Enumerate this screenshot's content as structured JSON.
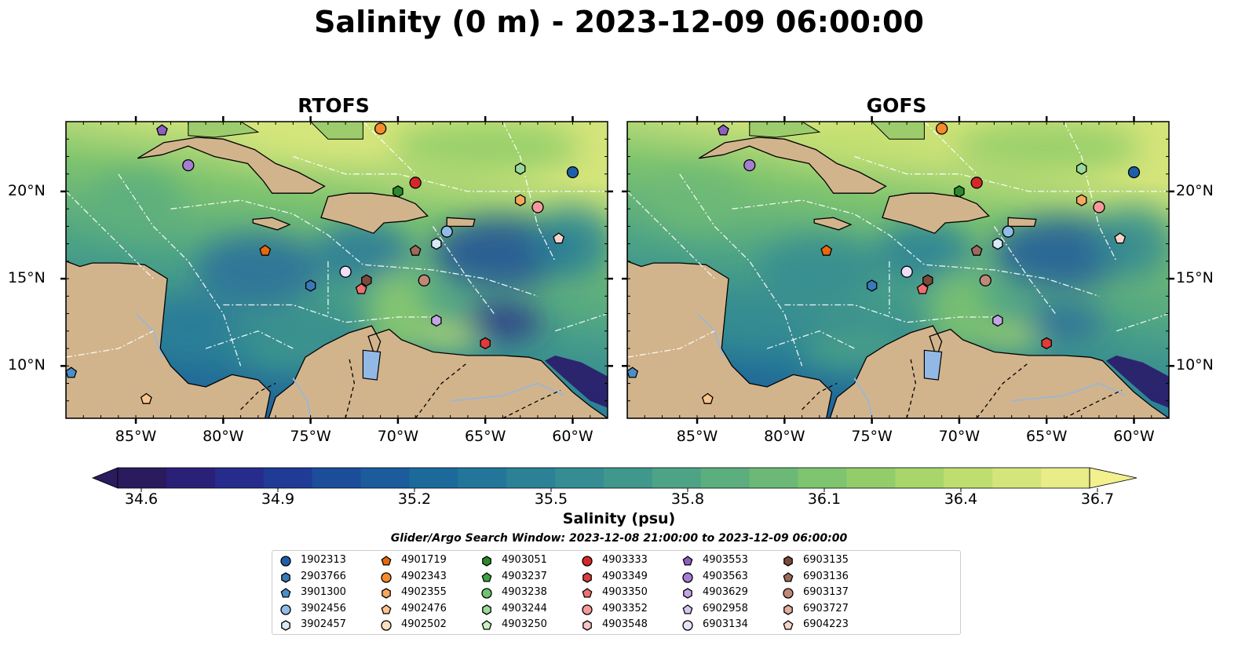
{
  "title": "Salinity (0 m) - 2023-12-09 06:00:00",
  "panels": [
    {
      "title": "RTOFS"
    },
    {
      "title": "GOFS"
    }
  ],
  "axes": {
    "lon_labels": [
      "85°W",
      "80°W",
      "75°W",
      "70°W",
      "65°W",
      "60°W"
    ],
    "lon_values": [
      -85,
      -80,
      -75,
      -70,
      -65,
      -60
    ],
    "lat_labels": [
      "20°N",
      "15°N",
      "10°N"
    ],
    "lat_values": [
      20,
      15,
      10
    ],
    "lon_range": [
      -89,
      -58
    ],
    "lat_range": [
      7,
      24
    ]
  },
  "colorbar": {
    "label": "Salinity (psu)",
    "ticks": [
      "34.6",
      "34.9",
      "35.2",
      "35.5",
      "35.8",
      "36.1",
      "36.4",
      "36.7"
    ],
    "colors": [
      "#2a1a5e",
      "#2b2078",
      "#262b8c",
      "#1f3b96",
      "#1b4d9a",
      "#1a5c9c",
      "#1c6a9c",
      "#22769a",
      "#2b8196",
      "#358c92",
      "#40978c",
      "#4da386",
      "#5cae7e",
      "#6cb977",
      "#7fc46f",
      "#93cd6a",
      "#a8d66a",
      "#bfde70",
      "#d4e57b",
      "#e8ec89"
    ]
  },
  "search_window": "Glider/Argo Search Window: 2023-12-08 21:00:00 to 2023-12-09 06:00:00",
  "legend": [
    {
      "id": "1902313",
      "color": "#1f5fa8",
      "marker": "circle"
    },
    {
      "id": "2903766",
      "color": "#3a78b8",
      "marker": "hexagon"
    },
    {
      "id": "3901300",
      "color": "#4a8fc8",
      "marker": "pentagon"
    },
    {
      "id": "3902456",
      "color": "#8fbde6",
      "marker": "circle"
    },
    {
      "id": "3902457",
      "color": "#d6eaf8",
      "marker": "hexagon"
    },
    {
      "id": "4901719",
      "color": "#e8690d",
      "marker": "pentagon"
    },
    {
      "id": "4902343",
      "color": "#f88a2e",
      "marker": "circle"
    },
    {
      "id": "4902355",
      "color": "#f8a85c",
      "marker": "hexagon"
    },
    {
      "id": "4902476",
      "color": "#fbc48e",
      "marker": "pentagon"
    },
    {
      "id": "4902502",
      "color": "#fde0c2",
      "marker": "circle"
    },
    {
      "id": "4903051",
      "color": "#2c8a2c",
      "marker": "hexagon"
    },
    {
      "id": "4903237",
      "color": "#3fa33f",
      "marker": "pentagon"
    },
    {
      "id": "4903238",
      "color": "#6cc46c",
      "marker": "circle"
    },
    {
      "id": "4903244",
      "color": "#9ad99a",
      "marker": "hexagon"
    },
    {
      "id": "4903250",
      "color": "#c9f0c0",
      "marker": "pentagon"
    },
    {
      "id": "4903333",
      "color": "#d62728",
      "marker": "circle"
    },
    {
      "id": "4903349",
      "color": "#e03a3a",
      "marker": "hexagon"
    },
    {
      "id": "4903350",
      "color": "#f07070",
      "marker": "pentagon"
    },
    {
      "id": "4903352",
      "color": "#f59a9a",
      "marker": "circle"
    },
    {
      "id": "4903548",
      "color": "#f8c4c4",
      "marker": "hexagon"
    },
    {
      "id": "4903553",
      "color": "#8e5fc0",
      "marker": "pentagon"
    },
    {
      "id": "4903563",
      "color": "#a57ed2",
      "marker": "circle"
    },
    {
      "id": "4903629",
      "color": "#c2a6e4",
      "marker": "hexagon"
    },
    {
      "id": "6902958",
      "color": "#d9c6f0",
      "marker": "pentagon"
    },
    {
      "id": "6903134",
      "color": "#ecdff8",
      "marker": "circle"
    },
    {
      "id": "6903135",
      "color": "#7b4a3a",
      "marker": "hexagon"
    },
    {
      "id": "6903136",
      "color": "#9c6a5a",
      "marker": "pentagon"
    },
    {
      "id": "6903137",
      "color": "#c08878",
      "marker": "circle"
    },
    {
      "id": "6903727",
      "color": "#e2b0a0",
      "marker": "hexagon"
    },
    {
      "id": "6904223",
      "color": "#f8d4c8",
      "marker": "pentagon"
    }
  ],
  "floats": [
    {
      "id": "4903553",
      "lon": -83.5,
      "lat": 23.5
    },
    {
      "id": "4903563",
      "lon": -82.0,
      "lat": 21.5
    },
    {
      "id": "4902343",
      "lon": -71.0,
      "lat": 23.6
    },
    {
      "id": "4903244",
      "lon": -63.0,
      "lat": 21.3
    },
    {
      "id": "1902313",
      "lon": -60.0,
      "lat": 21.1
    },
    {
      "id": "4903333",
      "lon": -69.0,
      "lat": 20.5
    },
    {
      "id": "4903051",
      "lon": -70.0,
      "lat": 20.0
    },
    {
      "id": "4902355",
      "lon": -63.0,
      "lat": 19.5
    },
    {
      "id": "4903352",
      "lon": -62.0,
      "lat": 19.1
    },
    {
      "id": "3902456",
      "lon": -67.2,
      "lat": 17.7
    },
    {
      "id": "3902457",
      "lon": -67.8,
      "lat": 17.0
    },
    {
      "id": "6904223",
      "lon": -60.8,
      "lat": 17.3
    },
    {
      "id": "4901719",
      "lon": -77.6,
      "lat": 16.6
    },
    {
      "id": "6903136",
      "lon": -69.0,
      "lat": 16.6
    },
    {
      "id": "6903134",
      "lon": -73.0,
      "lat": 15.4
    },
    {
      "id": "6903135",
      "lon": -71.8,
      "lat": 14.9
    },
    {
      "id": "6903137",
      "lon": -68.5,
      "lat": 14.9
    },
    {
      "id": "2903766",
      "lon": -75.0,
      "lat": 14.6
    },
    {
      "id": "4903350",
      "lon": -72.1,
      "lat": 14.4
    },
    {
      "id": "4903629",
      "lon": -67.8,
      "lat": 12.6
    },
    {
      "id": "4903349",
      "lon": -65.0,
      "lat": 11.3
    },
    {
      "id": "3901300",
      "lon": -88.7,
      "lat": 9.6
    },
    {
      "id": "4902476",
      "lon": -84.4,
      "lat": 8.1
    }
  ]
}
